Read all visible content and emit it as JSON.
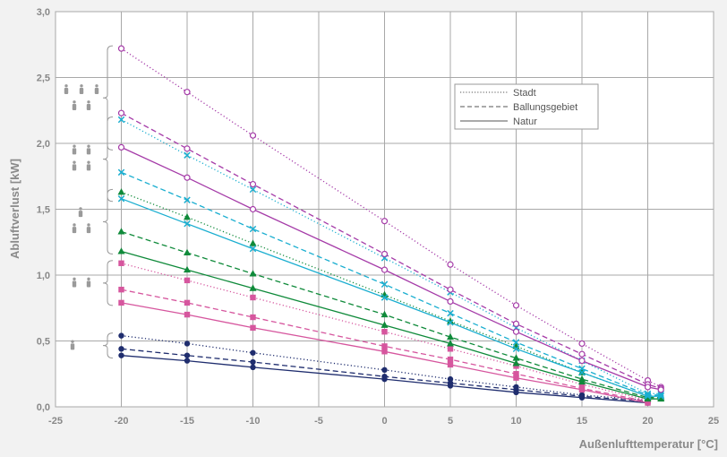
{
  "chart_data": {
    "type": "line",
    "xlabel": "Außenlufttemperatur [°C]",
    "ylabel": "Abluftverlust [kW]",
    "xlim": [
      -25,
      25
    ],
    "ylim": [
      0,
      3
    ],
    "xticks": [
      "-25",
      "-20",
      "-15",
      "-10",
      "-5",
      "0",
      "5",
      "10",
      "15",
      "20",
      "25"
    ],
    "yticks": [
      "0,0",
      "0,5",
      "1,0",
      "1,5",
      "2,0",
      "2,5",
      "3,0"
    ],
    "grid": true,
    "legend": {
      "position": "upper-right",
      "entries": [
        {
          "label": "Stadt",
          "style": "dotted"
        },
        {
          "label": "Ballungsgebiet",
          "style": "dashed"
        },
        {
          "label": "Natur",
          "style": "solid"
        }
      ]
    },
    "groups": [
      {
        "persons": 1,
        "color": "#1f2d6e",
        "marker": "dot",
        "series": [
          {
            "style": "dotted",
            "values": [
              [
                -20,
                0.54
              ],
              [
                -15,
                0.48
              ],
              [
                -10,
                0.41
              ],
              [
                0,
                0.28
              ],
              [
                5,
                0.21
              ],
              [
                10,
                0.15
              ],
              [
                15,
                0.09
              ],
              [
                20,
                0.05
              ]
            ]
          },
          {
            "style": "dashed",
            "values": [
              [
                -20,
                0.44
              ],
              [
                -15,
                0.39
              ],
              [
                -10,
                0.34
              ],
              [
                0,
                0.23
              ],
              [
                5,
                0.18
              ],
              [
                10,
                0.13
              ],
              [
                15,
                0.08
              ],
              [
                20,
                0.04
              ]
            ]
          },
          {
            "style": "solid",
            "values": [
              [
                -20,
                0.39
              ],
              [
                -15,
                0.35
              ],
              [
                -10,
                0.3
              ],
              [
                0,
                0.21
              ],
              [
                5,
                0.16
              ],
              [
                10,
                0.11
              ],
              [
                15,
                0.07
              ],
              [
                20,
                0.03
              ]
            ]
          }
        ]
      },
      {
        "persons": 2,
        "color": "#d6569e",
        "marker": "square",
        "series": [
          {
            "style": "dotted",
            "values": [
              [
                -20,
                1.09
              ],
              [
                -15,
                0.96
              ],
              [
                -10,
                0.83
              ],
              [
                0,
                0.57
              ],
              [
                5,
                0.44
              ],
              [
                10,
                0.31
              ],
              [
                15,
                0.17
              ],
              [
                20,
                0.05
              ]
            ]
          },
          {
            "style": "dashed",
            "values": [
              [
                -20,
                0.89
              ],
              [
                -15,
                0.79
              ],
              [
                -10,
                0.68
              ],
              [
                0,
                0.46
              ],
              [
                5,
                0.36
              ],
              [
                10,
                0.25
              ],
              [
                15,
                0.14
              ],
              [
                20,
                0.04
              ]
            ]
          },
          {
            "style": "solid",
            "values": [
              [
                -20,
                0.79
              ],
              [
                -15,
                0.7
              ],
              [
                -10,
                0.6
              ],
              [
                0,
                0.42
              ],
              [
                5,
                0.32
              ],
              [
                10,
                0.22
              ],
              [
                15,
                0.13
              ],
              [
                20,
                0.03
              ]
            ]
          }
        ]
      },
      {
        "persons": 3,
        "color": "#0f8a3a",
        "marker": "triangle",
        "series": [
          {
            "style": "dotted",
            "values": [
              [
                -20,
                1.63
              ],
              [
                -15,
                1.44
              ],
              [
                -10,
                1.24
              ],
              [
                0,
                0.85
              ],
              [
                5,
                0.65
              ],
              [
                10,
                0.46
              ],
              [
                15,
                0.26
              ],
              [
                20,
                0.08
              ],
              [
                21,
                0.08
              ]
            ]
          },
          {
            "style": "dashed",
            "values": [
              [
                -20,
                1.33
              ],
              [
                -15,
                1.17
              ],
              [
                -10,
                1.01
              ],
              [
                0,
                0.7
              ],
              [
                5,
                0.53
              ],
              [
                10,
                0.37
              ],
              [
                15,
                0.21
              ],
              [
                20,
                0.07
              ],
              [
                21,
                0.07
              ]
            ]
          },
          {
            "style": "solid",
            "values": [
              [
                -20,
                1.18
              ],
              [
                -15,
                1.04
              ],
              [
                -10,
                0.9
              ],
              [
                0,
                0.62
              ],
              [
                5,
                0.48
              ],
              [
                10,
                0.33
              ],
              [
                15,
                0.19
              ],
              [
                20,
                0.06
              ],
              [
                21,
                0.06
              ]
            ]
          }
        ]
      },
      {
        "persons": 4,
        "color": "#1aaed0",
        "marker": "cross",
        "series": [
          {
            "style": "dotted",
            "values": [
              [
                -20,
                2.18
              ],
              [
                -15,
                1.91
              ],
              [
                -10,
                1.65
              ],
              [
                0,
                1.13
              ],
              [
                5,
                0.87
              ],
              [
                10,
                0.6
              ],
              [
                15,
                0.35
              ],
              [
                20,
                0.1
              ],
              [
                21,
                0.1
              ]
            ]
          },
          {
            "style": "dashed",
            "values": [
              [
                -20,
                1.78
              ],
              [
                -15,
                1.57
              ],
              [
                -10,
                1.35
              ],
              [
                0,
                0.93
              ],
              [
                5,
                0.71
              ],
              [
                10,
                0.49
              ],
              [
                15,
                0.29
              ],
              [
                20,
                0.09
              ],
              [
                21,
                0.09
              ]
            ]
          },
          {
            "style": "solid",
            "values": [
              [
                -20,
                1.58
              ],
              [
                -15,
                1.39
              ],
              [
                -10,
                1.2
              ],
              [
                0,
                0.83
              ],
              [
                5,
                0.64
              ],
              [
                10,
                0.44
              ],
              [
                15,
                0.26
              ],
              [
                20,
                0.08
              ],
              [
                21,
                0.08
              ]
            ]
          }
        ]
      },
      {
        "persons": 5,
        "color": "#a53ba8",
        "marker": "circle",
        "series": [
          {
            "style": "dotted",
            "values": [
              [
                -20,
                2.72
              ],
              [
                -15,
                2.39
              ],
              [
                -10,
                2.06
              ],
              [
                0,
                1.41
              ],
              [
                5,
                1.08
              ],
              [
                10,
                0.77
              ],
              [
                15,
                0.48
              ],
              [
                20,
                0.2
              ],
              [
                21,
                0.15
              ]
            ]
          },
          {
            "style": "dashed",
            "values": [
              [
                -20,
                2.23
              ],
              [
                -15,
                1.96
              ],
              [
                -10,
                1.69
              ],
              [
                0,
                1.16
              ],
              [
                5,
                0.89
              ],
              [
                10,
                0.63
              ],
              [
                15,
                0.4
              ],
              [
                20,
                0.17
              ],
              [
                21,
                0.14
              ]
            ]
          },
          {
            "style": "solid",
            "values": [
              [
                -20,
                1.97
              ],
              [
                -15,
                1.74
              ],
              [
                -10,
                1.5
              ],
              [
                0,
                1.04
              ],
              [
                5,
                0.8
              ],
              [
                10,
                0.57
              ],
              [
                15,
                0.35
              ],
              [
                20,
                0.15
              ],
              [
                21,
                0.13
              ]
            ]
          }
        ]
      }
    ]
  }
}
